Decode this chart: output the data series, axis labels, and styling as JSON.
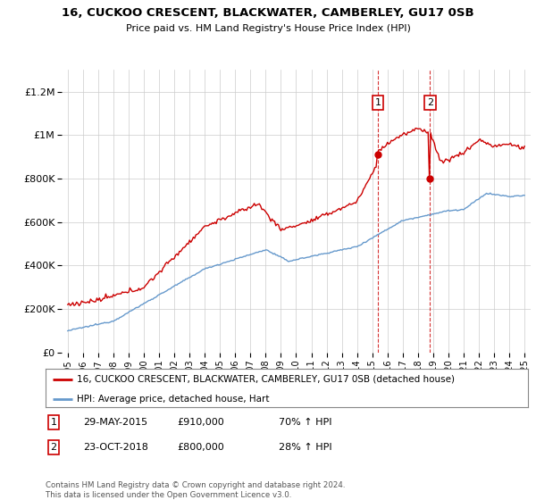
{
  "title": "16, CUCKOO CRESCENT, BLACKWATER, CAMBERLEY, GU17 0SB",
  "subtitle": "Price paid vs. HM Land Registry's House Price Index (HPI)",
  "legend_line1": "16, CUCKOO CRESCENT, BLACKWATER, CAMBERLEY, GU17 0SB (detached house)",
  "legend_line2": "HPI: Average price, detached house, Hart",
  "transaction1_date": "29-MAY-2015",
  "transaction1_price": 910000,
  "transaction1_pct": "70% ↑ HPI",
  "transaction2_date": "23-OCT-2018",
  "transaction2_price": 800000,
  "transaction2_pct": "28% ↑ HPI",
  "footer": "Contains HM Land Registry data © Crown copyright and database right 2024.\nThis data is licensed under the Open Government Licence v3.0.",
  "red_color": "#cc0000",
  "blue_color": "#6699cc",
  "background_color": "#ffffff",
  "grid_color": "#cccccc",
  "ylim": [
    0,
    1300000
  ],
  "yticks": [
    0,
    200000,
    400000,
    600000,
    800000,
    1000000,
    1200000
  ],
  "ytick_labels": [
    "£0",
    "£200K",
    "£400K",
    "£600K",
    "£800K",
    "£1M",
    "£1.2M"
  ],
  "year_start": 1995,
  "year_end": 2025,
  "t1_year": 2015.37,
  "t1_price": 910000,
  "t2_year": 2018.79,
  "t2_price": 800000
}
